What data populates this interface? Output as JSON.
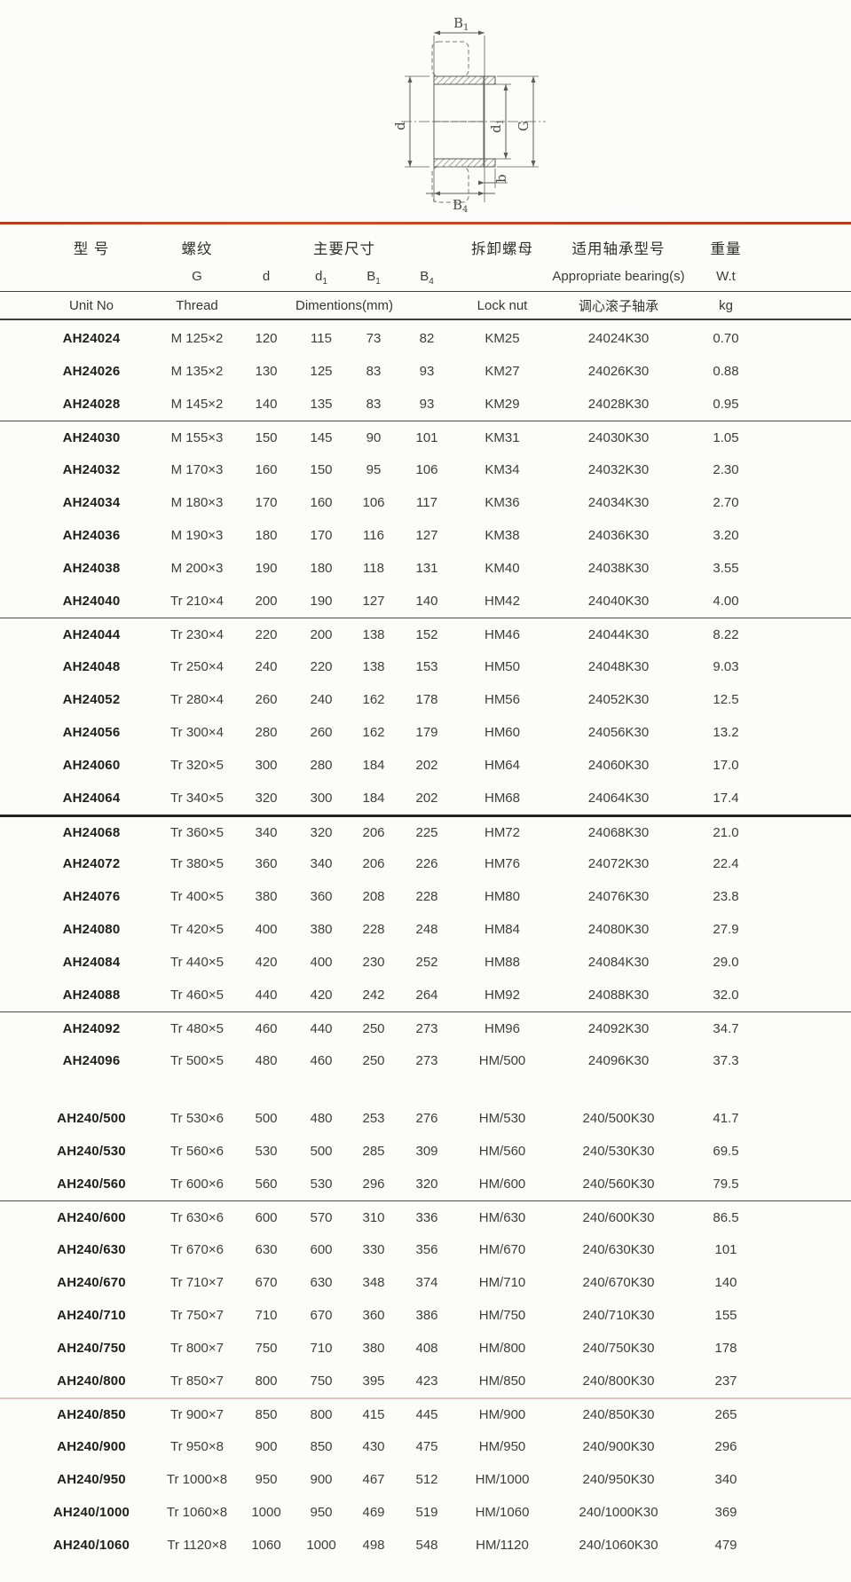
{
  "colors": {
    "accent_rule": "#c23c24",
    "table_line": "#3c3c3c",
    "strong_line": "#242424",
    "faint_line": "#e6c3ba",
    "text": "#3d3d3d",
    "bold_text": "#1f1f1f",
    "background": "#fcfcfb"
  },
  "drawing": {
    "dim_b1": {
      "base": "B",
      "sub": "1"
    },
    "dim_d": {
      "base": "d",
      "sub": ""
    },
    "dim_d1": {
      "base": "d",
      "sub": "1"
    },
    "dim_g": {
      "base": "G",
      "sub": ""
    },
    "dim_b": {
      "base": "b",
      "sub": ""
    },
    "dim_b4": {
      "base": "B",
      "sub": "4"
    }
  },
  "header": {
    "model": {
      "cn": "型  号",
      "en": "Unit No"
    },
    "thread": {
      "cn": "螺纹",
      "g": "G",
      "en": "Thread"
    },
    "dims": {
      "cn": "主要尺寸",
      "en": "Dimentions(mm)",
      "sub": [
        {
          "base": "d",
          "sub": ""
        },
        {
          "base": "d",
          "sub": "1"
        },
        {
          "base": "B",
          "sub": "1"
        },
        {
          "base": "B",
          "sub": "4"
        }
      ]
    },
    "locknut": {
      "cn": "拆卸螺母",
      "en": "Lock nut"
    },
    "bearing": {
      "cn": "适用轴承型号",
      "en": "Appropriate bearing(s)",
      "cn2": "调心滚子轴承"
    },
    "weight": {
      "cn": "重量",
      "en": "W.t",
      "unit": "kg"
    }
  },
  "table": {
    "cell_names": [
      "unit-no",
      "thread",
      "dim-d",
      "dim-d1",
      "dim-b1",
      "dim-b4",
      "lock-nut",
      "bearing",
      "weight"
    ],
    "group_breaks": [
      3,
      9,
      15,
      21,
      26,
      32
    ],
    "strong_breaks": [
      15
    ],
    "faint_breaks": [
      32
    ],
    "gap_before": [
      23
    ],
    "rows": [
      [
        "AH24024",
        "M 125×2",
        "120",
        "115",
        "73",
        "82",
        "KM25",
        "24024K30",
        "0.70"
      ],
      [
        "AH24026",
        "M 135×2",
        "130",
        "125",
        "83",
        "93",
        "KM27",
        "24026K30",
        "0.88"
      ],
      [
        "AH24028",
        "M 145×2",
        "140",
        "135",
        "83",
        "93",
        "KM29",
        "24028K30",
        "0.95"
      ],
      [
        "AH24030",
        "M 155×3",
        "150",
        "145",
        "90",
        "101",
        "KM31",
        "24030K30",
        "1.05"
      ],
      [
        "AH24032",
        "M 170×3",
        "160",
        "150",
        "95",
        "106",
        "KM34",
        "24032K30",
        "2.30"
      ],
      [
        "AH24034",
        "M 180×3",
        "170",
        "160",
        "106",
        "117",
        "KM36",
        "24034K30",
        "2.70"
      ],
      [
        "AH24036",
        "M 190×3",
        "180",
        "170",
        "116",
        "127",
        "KM38",
        "24036K30",
        "3.20"
      ],
      [
        "AH24038",
        "M 200×3",
        "190",
        "180",
        "118",
        "131",
        "KM40",
        "24038K30",
        "3.55"
      ],
      [
        "AH24040",
        "Tr 210×4",
        "200",
        "190",
        "127",
        "140",
        "HM42",
        "24040K30",
        "4.00"
      ],
      [
        "AH24044",
        "Tr 230×4",
        "220",
        "200",
        "138",
        "152",
        "HM46",
        "24044K30",
        "8.22"
      ],
      [
        "AH24048",
        "Tr 250×4",
        "240",
        "220",
        "138",
        "153",
        "HM50",
        "24048K30",
        "9.03"
      ],
      [
        "AH24052",
        "Tr 280×4",
        "260",
        "240",
        "162",
        "178",
        "HM56",
        "24052K30",
        "12.5"
      ],
      [
        "AH24056",
        "Tr 300×4",
        "280",
        "260",
        "162",
        "179",
        "HM60",
        "24056K30",
        "13.2"
      ],
      [
        "AH24060",
        "Tr 320×5",
        "300",
        "280",
        "184",
        "202",
        "HM64",
        "24060K30",
        "17.0"
      ],
      [
        "AH24064",
        "Tr 340×5",
        "320",
        "300",
        "184",
        "202",
        "HM68",
        "24064K30",
        "17.4"
      ],
      [
        "AH24068",
        "Tr 360×5",
        "340",
        "320",
        "206",
        "225",
        "HM72",
        "24068K30",
        "21.0"
      ],
      [
        "AH24072",
        "Tr 380×5",
        "360",
        "340",
        "206",
        "226",
        "HM76",
        "24072K30",
        "22.4"
      ],
      [
        "AH24076",
        "Tr 400×5",
        "380",
        "360",
        "208",
        "228",
        "HM80",
        "24076K30",
        "23.8"
      ],
      [
        "AH24080",
        "Tr 420×5",
        "400",
        "380",
        "228",
        "248",
        "HM84",
        "24080K30",
        "27.9"
      ],
      [
        "AH24084",
        "Tr 440×5",
        "420",
        "400",
        "230",
        "252",
        "HM88",
        "24084K30",
        "29.0"
      ],
      [
        "AH24088",
        "Tr 460×5",
        "440",
        "420",
        "242",
        "264",
        "HM92",
        "24088K30",
        "32.0"
      ],
      [
        "AH24092",
        "Tr 480×5",
        "460",
        "440",
        "250",
        "273",
        "HM96",
        "24092K30",
        "34.7"
      ],
      [
        "AH24096",
        "Tr 500×5",
        "480",
        "460",
        "250",
        "273",
        "HM/500",
        "24096K30",
        "37.3"
      ],
      [
        "AH240/500",
        "Tr 530×6",
        "500",
        "480",
        "253",
        "276",
        "HM/530",
        "240/500K30",
        "41.7"
      ],
      [
        "AH240/530",
        "Tr 560×6",
        "530",
        "500",
        "285",
        "309",
        "HM/560",
        "240/530K30",
        "69.5"
      ],
      [
        "AH240/560",
        "Tr 600×6",
        "560",
        "530",
        "296",
        "320",
        "HM/600",
        "240/560K30",
        "79.5"
      ],
      [
        "AH240/600",
        "Tr 630×6",
        "600",
        "570",
        "310",
        "336",
        "HM/630",
        "240/600K30",
        "86.5"
      ],
      [
        "AH240/630",
        "Tr 670×6",
        "630",
        "600",
        "330",
        "356",
        "HM/670",
        "240/630K30",
        "101"
      ],
      [
        "AH240/670",
        "Tr 710×7",
        "670",
        "630",
        "348",
        "374",
        "HM/710",
        "240/670K30",
        "140"
      ],
      [
        "AH240/710",
        "Tr 750×7",
        "710",
        "670",
        "360",
        "386",
        "HM/750",
        "240/710K30",
        "155"
      ],
      [
        "AH240/750",
        "Tr 800×7",
        "750",
        "710",
        "380",
        "408",
        "HM/800",
        "240/750K30",
        "178"
      ],
      [
        "AH240/800",
        "Tr 850×7",
        "800",
        "750",
        "395",
        "423",
        "HM/850",
        "240/800K30",
        "237"
      ],
      [
        "AH240/850",
        "Tr 900×7",
        "850",
        "800",
        "415",
        "445",
        "HM/900",
        "240/850K30",
        "265"
      ],
      [
        "AH240/900",
        "Tr 950×8",
        "900",
        "850",
        "430",
        "475",
        "HM/950",
        "240/900K30",
        "296"
      ],
      [
        "AH240/950",
        "Tr 1000×8",
        "950",
        "900",
        "467",
        "512",
        "HM/1000",
        "240/950K30",
        "340"
      ],
      [
        "AH240/1000",
        "Tr 1060×8",
        "1000",
        "950",
        "469",
        "519",
        "HM/1060",
        "240/1000K30",
        "369"
      ],
      [
        "AH240/1060",
        "Tr 1120×8",
        "1060",
        "1000",
        "498",
        "548",
        "HM/1120",
        "240/1060K30",
        "479"
      ]
    ]
  }
}
